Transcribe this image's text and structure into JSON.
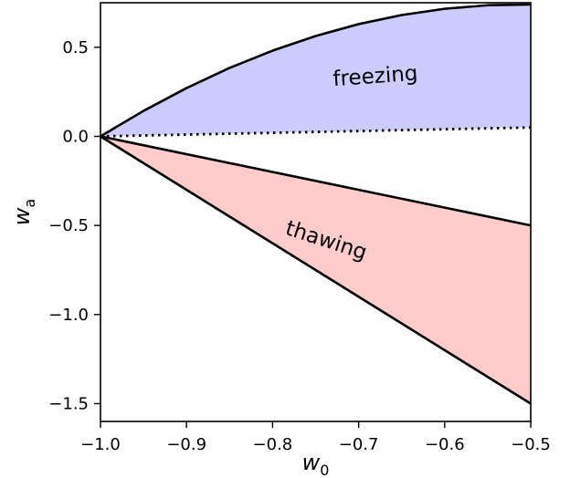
{
  "chart_data": {
    "type": "area",
    "xlabel": {
      "main": "w",
      "sub": "0"
    },
    "ylabel": {
      "main": "w",
      "sub": "a"
    },
    "xlim": [
      -1.0,
      -0.5
    ],
    "ylim": [
      -1.6,
      0.75
    ],
    "x_ticks": [
      {
        "value": -1.0,
        "label": "−1.0"
      },
      {
        "value": -0.9,
        "label": "−0.9"
      },
      {
        "value": -0.8,
        "label": "−0.8"
      },
      {
        "value": -0.7,
        "label": "−0.7"
      },
      {
        "value": -0.6,
        "label": "−0.6"
      },
      {
        "value": -0.5,
        "label": "−0.5"
      }
    ],
    "y_ticks": [
      {
        "value": 0.5,
        "label": "0.5"
      },
      {
        "value": 0.0,
        "label": "0.0"
      },
      {
        "value": -0.5,
        "label": "−0.5"
      },
      {
        "value": -1.0,
        "label": "−1.0"
      },
      {
        "value": -1.5,
        "label": "−1.5"
      }
    ],
    "grid": false,
    "regions": [
      {
        "name": "freezing",
        "label": "freezing",
        "color": "#ccccff",
        "x": [
          -1.0,
          -0.95,
          -0.9,
          -0.85,
          -0.8,
          -0.75,
          -0.7,
          -0.65,
          -0.6,
          -0.55,
          -0.5
        ],
        "upper": [
          0.0,
          0.143,
          0.271,
          0.384,
          0.481,
          0.563,
          0.63,
          0.681,
          0.716,
          0.736,
          0.74
        ],
        "lower": [
          0.0,
          0.005,
          0.01,
          0.015,
          0.02,
          0.025,
          0.03,
          0.035,
          0.04,
          0.045,
          0.05
        ],
        "label_at": [
          -0.68,
          0.3
        ],
        "label_rotation_deg": -4
      },
      {
        "name": "thawing",
        "label": "thawing",
        "color": "#ffcccc",
        "x": [
          -1.0,
          -0.5
        ],
        "upper": [
          0.0,
          -0.5
        ],
        "lower": [
          0.0,
          -1.5
        ],
        "label_at": [
          -0.74,
          -0.62
        ],
        "label_rotation_deg": 18
      }
    ],
    "lines": [
      {
        "name": "freezing-upper-boundary",
        "style": "solid",
        "x": [
          -1.0,
          -0.95,
          -0.9,
          -0.85,
          -0.8,
          -0.75,
          -0.7,
          -0.65,
          -0.6,
          -0.55,
          -0.5
        ],
        "y": [
          0.0,
          0.143,
          0.271,
          0.384,
          0.481,
          0.563,
          0.63,
          0.681,
          0.716,
          0.736,
          0.74
        ]
      },
      {
        "name": "freezing-lower-boundary",
        "style": "dotted",
        "x": [
          -1.0,
          -0.5
        ],
        "y": [
          0.0,
          0.05
        ]
      },
      {
        "name": "thawing-upper-boundary",
        "style": "solid",
        "x": [
          -1.0,
          -0.5
        ],
        "y": [
          0.0,
          -0.5
        ]
      },
      {
        "name": "thawing-lower-boundary",
        "style": "solid",
        "x": [
          -1.0,
          -0.5
        ],
        "y": [
          0.0,
          -1.5
        ]
      }
    ]
  }
}
